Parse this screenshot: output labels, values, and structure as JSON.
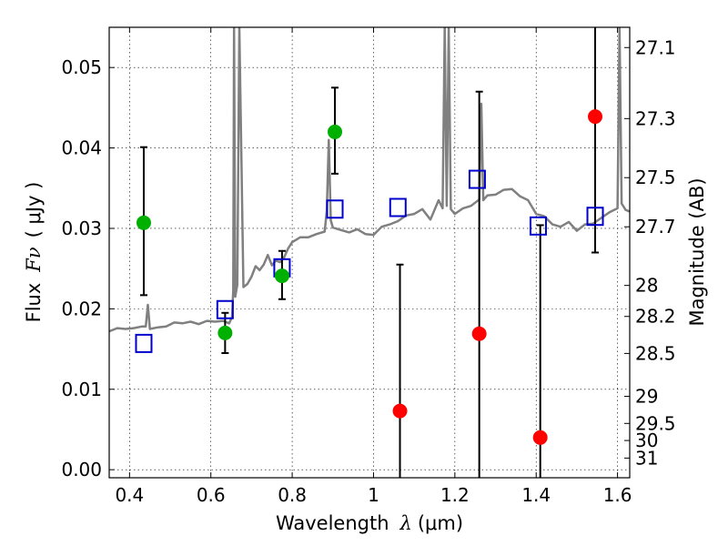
{
  "chart_data": {
    "type": "scatter",
    "xlabel": {
      "text": "Wavelength",
      "symbol": "λ",
      "unit": "(μm)"
    },
    "ylabel": {
      "text": "Flux",
      "symbol": "Fν",
      "unit": "( μJy )"
    },
    "y2label": "Magnitude (AB)",
    "xlim": [
      0.35,
      1.63
    ],
    "ylim": [
      -0.001,
      0.055
    ],
    "grid": true,
    "x_ticks": [
      "0.4",
      "0.6",
      "0.8",
      "1",
      "1.2",
      "1.4",
      "1.6"
    ],
    "x_tick_values": [
      0.4,
      0.6,
      0.8,
      1.0,
      1.2,
      1.4,
      1.6
    ],
    "y_ticks": [
      "0.00",
      "0.01",
      "0.02",
      "0.03",
      "0.04",
      "0.05"
    ],
    "y_tick_values": [
      0.0,
      0.01,
      0.02,
      0.03,
      0.04,
      0.05
    ],
    "mag_ticks": [
      "27.1",
      "27.3",
      "27.5",
      "27.7",
      "28",
      "28.2",
      "28.5",
      "29",
      "29.5",
      "30",
      "31"
    ],
    "mag_tick_values": [
      27.1,
      27.3,
      27.5,
      27.7,
      28.0,
      28.2,
      28.5,
      29.0,
      29.5,
      30.0,
      31.0
    ],
    "colors": {
      "green": "#00b000",
      "red": "#ff0000",
      "blue": "#0000cc",
      "model": "#808080"
    },
    "series": [
      {
        "marker": "square",
        "x": [
          0.435,
          0.635,
          0.775,
          0.905,
          1.06,
          1.255,
          1.405,
          1.545
        ],
        "y": [
          0.0157,
          0.0199,
          0.0251,
          0.0324,
          0.0326,
          0.0361,
          0.0303,
          0.0315
        ]
      },
      {
        "marker": "circle-green",
        "x": [
          0.435,
          0.635,
          0.775,
          0.905
        ],
        "y": [
          0.0307,
          0.017,
          0.0241,
          0.042
        ],
        "err_low": [
          0.0217,
          0.0145,
          0.0212,
          0.0368
        ],
        "err_high": [
          0.0401,
          0.0195,
          0.0272,
          0.0475
        ]
      },
      {
        "marker": "circle-red",
        "x": [
          1.065,
          1.26,
          1.41,
          1.545
        ],
        "y": [
          0.0073,
          0.0169,
          0.004,
          0.0439
        ],
        "err_low": [
          -0.0013,
          -0.0013,
          -0.0013,
          0.027
        ],
        "err_high": [
          0.0255,
          0.047,
          0.0304,
          0.0553
        ]
      },
      {
        "marker": "line",
        "x": [
          0.35,
          0.37,
          0.39,
          0.41,
          0.43,
          0.44,
          0.445,
          0.45,
          0.47,
          0.49,
          0.51,
          0.53,
          0.55,
          0.57,
          0.59,
          0.61,
          0.63,
          0.645,
          0.652,
          0.655,
          0.657,
          0.66,
          0.665,
          0.67,
          0.68,
          0.69,
          0.7,
          0.71,
          0.72,
          0.73,
          0.74,
          0.75,
          0.76,
          0.77,
          0.78,
          0.79,
          0.8,
          0.81,
          0.82,
          0.84,
          0.86,
          0.88,
          0.885,
          0.89,
          0.895,
          0.9,
          0.92,
          0.94,
          0.96,
          0.98,
          1.0,
          1.02,
          1.04,
          1.06,
          1.08,
          1.1,
          1.12,
          1.14,
          1.16,
          1.17,
          1.175,
          1.18,
          1.185,
          1.19,
          1.2,
          1.22,
          1.24,
          1.26,
          1.265,
          1.27,
          1.28,
          1.3,
          1.32,
          1.34,
          1.36,
          1.38,
          1.4,
          1.42,
          1.44,
          1.46,
          1.48,
          1.5,
          1.52,
          1.54,
          1.56,
          1.58,
          1.6,
          1.605,
          1.61,
          1.62,
          1.63
        ],
        "y": [
          0.0172,
          0.0176,
          0.0175,
          0.0176,
          0.0178,
          0.0178,
          0.0205,
          0.0175,
          0.0177,
          0.0178,
          0.0183,
          0.0182,
          0.0184,
          0.0181,
          0.0185,
          0.0184,
          0.0185,
          0.0182,
          0.019,
          0.0223,
          0.055,
          0.0215,
          0.023,
          0.055,
          0.0227,
          0.0231,
          0.024,
          0.0253,
          0.0248,
          0.0255,
          0.0267,
          0.0254,
          0.026,
          0.0258,
          0.0264,
          0.0275,
          0.0283,
          0.0286,
          0.0289,
          0.0289,
          0.0293,
          0.0296,
          0.0322,
          0.041,
          0.031,
          0.0301,
          0.0298,
          0.0295,
          0.0299,
          0.0293,
          0.0292,
          0.0302,
          0.0305,
          0.0309,
          0.0316,
          0.0318,
          0.0324,
          0.0311,
          0.0335,
          0.0325,
          0.055,
          0.0328,
          0.055,
          0.0324,
          0.0318,
          0.0325,
          0.0328,
          0.0336,
          0.0455,
          0.0335,
          0.0341,
          0.0342,
          0.0348,
          0.0349,
          0.034,
          0.0335,
          0.0318,
          0.0315,
          0.0305,
          0.0302,
          0.0308,
          0.0297,
          0.0305,
          0.0306,
          0.0313,
          0.032,
          0.0325,
          0.055,
          0.0331,
          0.0323,
          0.0321
        ]
      }
    ]
  }
}
